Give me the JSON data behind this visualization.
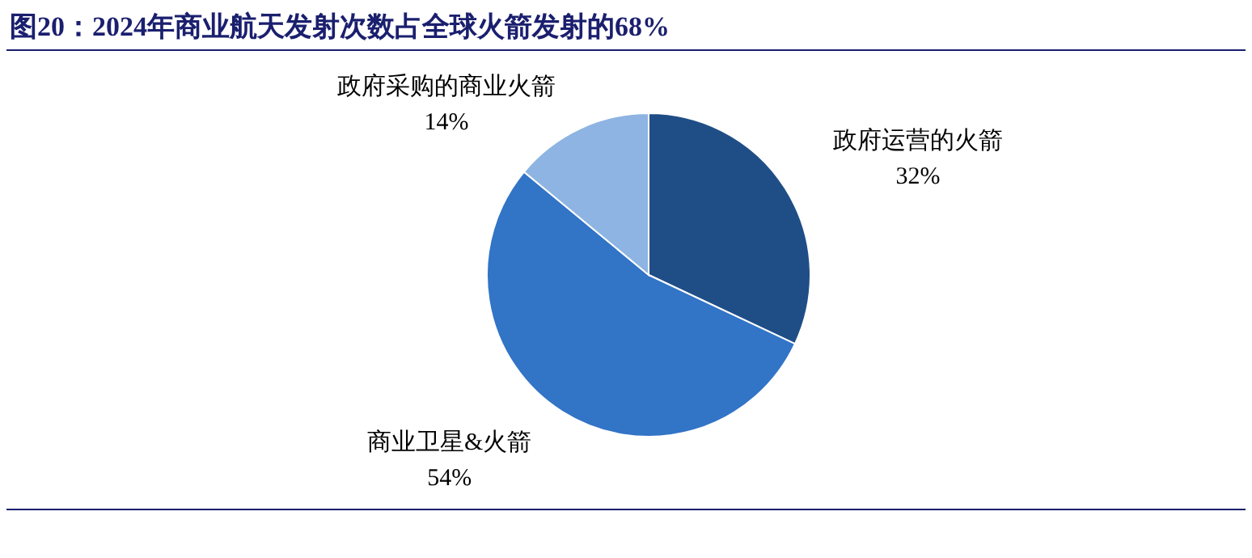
{
  "chart_data": {
    "type": "pie",
    "title": "图20：2024年商业航天发射次数占全球火箭发射的68%",
    "categories": [
      "政府运营的火箭",
      "商业卫星&火箭",
      "政府采购的商业火箭"
    ],
    "values": [
      32,
      54,
      14
    ],
    "colors": [
      "#1f4e87",
      "#3274c6",
      "#8db4e2"
    ],
    "value_labels": [
      "32%",
      "54%",
      "14%"
    ]
  }
}
